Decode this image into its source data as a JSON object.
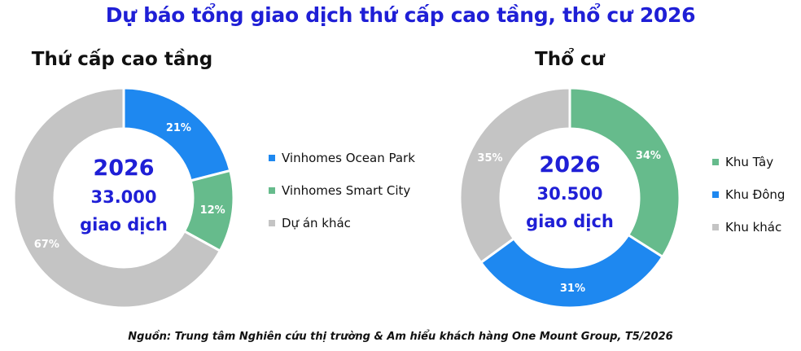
{
  "title": "Dự báo tổng giao dịch thứ cấp cao tầng, thổ cư 2026",
  "source": "Nguồn: Trung tâm Nghiên cứu thị trường & Am hiểu khách hàng One Mount Group, T5/2026",
  "colors": {
    "blue": "#1e88f0",
    "green": "#66bb8c",
    "gray": "#c4c4c4",
    "title": "#1f1fd6"
  },
  "chart_data": [
    {
      "type": "pie",
      "title": "Thứ cấp cao tầng",
      "center": {
        "year": "2026",
        "value": "33.000",
        "unit": "giao dịch"
      },
      "slices": [
        {
          "name": "Vinhomes Ocean Park",
          "value": 21,
          "label": "21%",
          "color": "#1e88f0"
        },
        {
          "name": "Vinhomes Smart City",
          "value": 12,
          "label": "12%",
          "color": "#66bb8c"
        },
        {
          "name": "Dự án khác",
          "value": 67,
          "label": "67%",
          "color": "#c4c4c4"
        }
      ]
    },
    {
      "type": "pie",
      "title": "Thổ cư",
      "center": {
        "year": "2026",
        "value": "30.500",
        "unit": "giao dịch"
      },
      "slices": [
        {
          "name": "Khu Tây",
          "value": 34,
          "label": "34%",
          "color": "#66bb8c"
        },
        {
          "name": "Khu Đông",
          "value": 31,
          "label": "31%",
          "color": "#1e88f0"
        },
        {
          "name": "Khu khác",
          "value": 35,
          "label": "35%",
          "color": "#c4c4c4"
        }
      ]
    }
  ]
}
